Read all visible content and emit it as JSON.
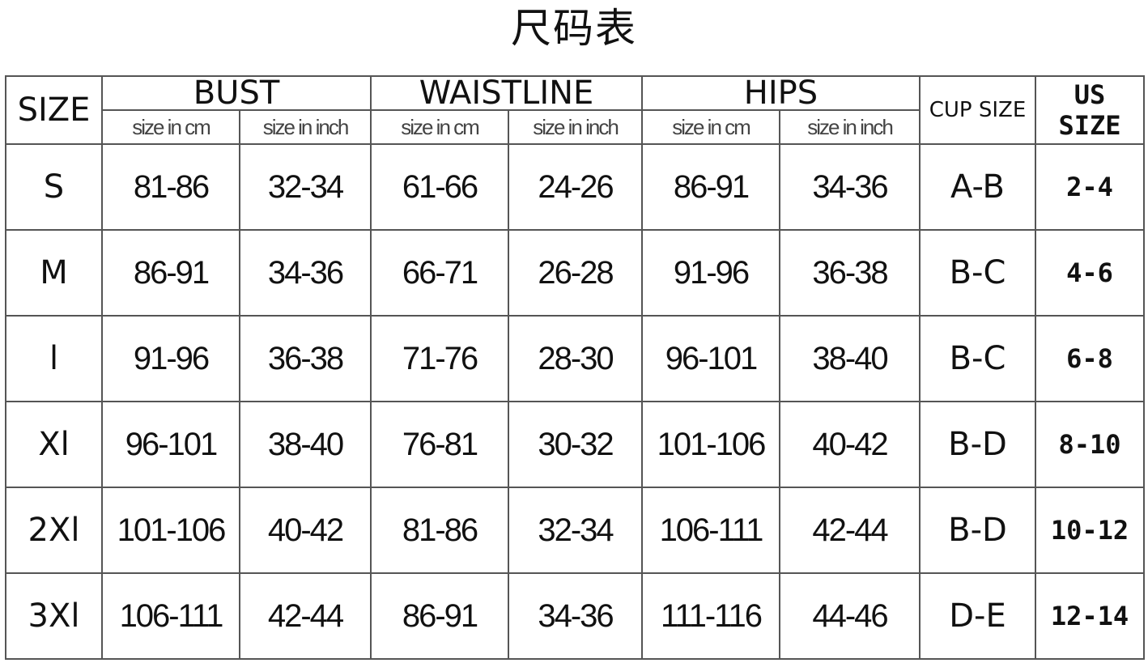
{
  "title": "尺码表",
  "headers": {
    "size": "SIZE",
    "groups": [
      "BUST",
      "WAISTLINE",
      "HIPS"
    ],
    "sub": [
      "size in cm",
      "size in inch"
    ],
    "cup": "CUP SIZE",
    "us": "US SIZE"
  },
  "rows": [
    {
      "size": "S",
      "v": [
        "81-86",
        "32-34",
        "61-66",
        "24-26",
        "86-91",
        "34-36"
      ],
      "cup": "A-B",
      "us": "2-4"
    },
    {
      "size": "M",
      "v": [
        "86-91",
        "34-36",
        "66-71",
        "26-28",
        "91-96",
        "36-38"
      ],
      "cup": "B-C",
      "us": "4-6"
    },
    {
      "size": "l",
      "v": [
        "91-96",
        "36-38",
        "71-76",
        "28-30",
        "96-101",
        "38-40"
      ],
      "cup": "B-C",
      "us": "6-8"
    },
    {
      "size": "Xl",
      "v": [
        "96-101",
        "38-40",
        "76-81",
        "30-32",
        "101-106",
        "40-42"
      ],
      "cup": "B-D",
      "us": "8-10"
    },
    {
      "size": "2Xl",
      "v": [
        "101-106",
        "40-42",
        "81-86",
        "32-34",
        "106-111",
        "42-44"
      ],
      "cup": "B-D",
      "us": "10-12"
    },
    {
      "size": "3Xl",
      "v": [
        "106-111",
        "42-44",
        "86-91",
        "34-36",
        "111-116",
        "44-46"
      ],
      "cup": "D-E",
      "us": "12-14"
    }
  ]
}
